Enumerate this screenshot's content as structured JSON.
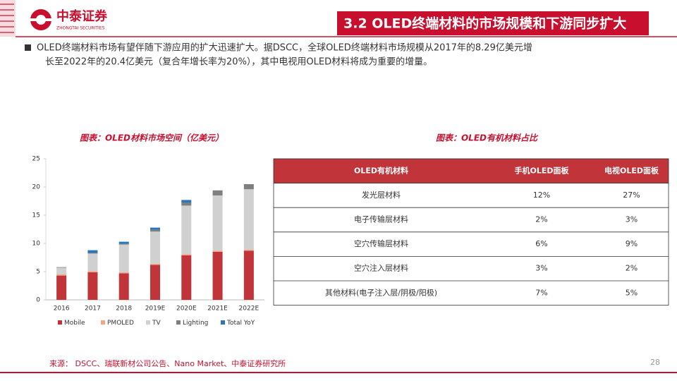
{
  "header": {
    "logo_text": "中泰证券",
    "logo_subtext": "ZHONGTAI SECURITIES",
    "title": "3.2 OLED终端材料的市场规模和下游同步扩大"
  },
  "bullet": [
    "OLED终端材料市场有望伴随下游应用的扩大迅速扩大。据DSCC，全球OLED终端材料市场规模从2017年的8.29亿美元增",
    "长至2022年的20.4亿美元（复合年增长率为20%），其中电视用OLED材料将成为重要的增量。"
  ],
  "chart_data": {
    "type": "stacked-bar",
    "title": "图表：OLED材料市场空间（亿美元）",
    "categories": [
      "2016",
      "2017",
      "2018",
      "2019E",
      "2020E",
      "2021E",
      "2022E"
    ],
    "series": [
      {
        "name": "Mobile",
        "color": "#c0343a",
        "values": [
          4.3,
          4.9,
          4.7,
          6.2,
          7.9,
          8.5,
          8.7
        ]
      },
      {
        "name": "PMOLED",
        "color": "#f4a582",
        "values": [
          0.2,
          0.2,
          0.2,
          0.2,
          0.2,
          0.2,
          0.2
        ]
      },
      {
        "name": "TV",
        "color": "#d0d0d0",
        "values": [
          1.2,
          3.1,
          4.9,
          5.7,
          8.6,
          9.8,
          10.7
        ]
      },
      {
        "name": "Lighting",
        "color": "#7f7f7f",
        "values": [
          0.1,
          0.1,
          0.1,
          0.3,
          0.5,
          0.9,
          0.9
        ]
      },
      {
        "name": "Total YoY",
        "color": "#2e75b6",
        "values": [
          0,
          0.5,
          0.4,
          0.4,
          0.5,
          0,
          0
        ]
      }
    ],
    "ylim": [
      0,
      25
    ],
    "yticks": [
      0,
      5,
      10,
      15,
      20,
      25
    ]
  },
  "table": {
    "title": "图表：OLED有机材料占比",
    "header": [
      "OLED有机材料",
      "手机OLED面板",
      "电视OLED面板"
    ],
    "rows": [
      [
        "发光层材料",
        "12%",
        "27%"
      ],
      [
        "电子传输层材料",
        "2%",
        "3%"
      ],
      [
        "空穴传输层材料",
        "6%",
        "9%"
      ],
      [
        "空穴注入层材料",
        "3%",
        "2%"
      ],
      [
        "其他材料(电子注入层/阴极/阳极)",
        "7%",
        "5%"
      ]
    ]
  },
  "source": "来源：  DSCC、瑞联新材公司公告、Nano Market、中泰证券研究所",
  "page_number": "28"
}
